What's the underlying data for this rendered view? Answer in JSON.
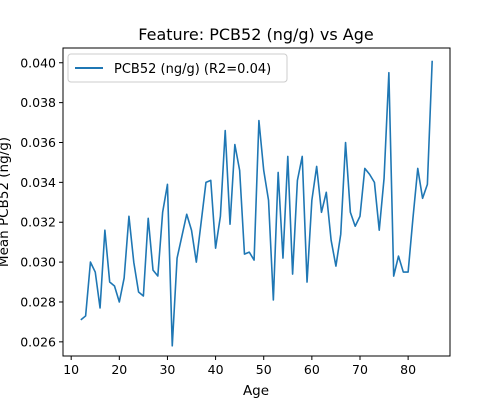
{
  "chart_data": {
    "type": "line",
    "title": "Feature: PCB52 (ng/g) vs Age",
    "xlabel": "Age",
    "ylabel": "Mean PCB52 (ng/g)",
    "xlim": [
      8.3,
      88.7
    ],
    "ylim": [
      0.02529,
      0.04074
    ],
    "xticks": [
      10,
      20,
      30,
      40,
      50,
      60,
      70,
      80
    ],
    "yticks": [
      0.026,
      0.028,
      0.03,
      0.032,
      0.034,
      0.036,
      0.038,
      0.04
    ],
    "ytick_labels": [
      "0.026",
      "0.028",
      "0.030",
      "0.032",
      "0.034",
      "0.036",
      "0.038",
      "0.040"
    ],
    "grid": false,
    "legend_position": "upper-left",
    "series": [
      {
        "name": "PCB52 (ng/g) (R2=0.04)",
        "color": "#1f77b4",
        "x": [
          12,
          13,
          14,
          15,
          16,
          17,
          18,
          19,
          20,
          21,
          22,
          23,
          24,
          25,
          26,
          27,
          28,
          29,
          30,
          31,
          32,
          33,
          34,
          35,
          36,
          37,
          38,
          39,
          40,
          41,
          42,
          43,
          44,
          45,
          46,
          47,
          48,
          49,
          50,
          51,
          52,
          53,
          54,
          55,
          56,
          57,
          58,
          59,
          60,
          61,
          62,
          63,
          64,
          65,
          66,
          67,
          68,
          69,
          70,
          71,
          72,
          73,
          74,
          75,
          76,
          77,
          78,
          79,
          80,
          81,
          82,
          83,
          84,
          85
        ],
        "y": [
          0.0271,
          0.0273,
          0.03,
          0.0295,
          0.0277,
          0.0316,
          0.029,
          0.0288,
          0.028,
          0.0292,
          0.0323,
          0.03,
          0.0285,
          0.0283,
          0.0322,
          0.0296,
          0.0293,
          0.0325,
          0.0339,
          0.0258,
          0.0302,
          0.0313,
          0.0324,
          0.0316,
          0.03,
          0.032,
          0.034,
          0.0341,
          0.0307,
          0.0323,
          0.0366,
          0.0319,
          0.0359,
          0.0346,
          0.0304,
          0.0305,
          0.0301,
          0.0371,
          0.0346,
          0.0331,
          0.0281,
          0.0345,
          0.0302,
          0.0353,
          0.0294,
          0.0341,
          0.0353,
          0.029,
          0.0331,
          0.0348,
          0.0325,
          0.0335,
          0.0311,
          0.0298,
          0.0314,
          0.036,
          0.0325,
          0.0318,
          0.0323,
          0.0347,
          0.0344,
          0.034,
          0.0316,
          0.0342,
          0.0395,
          0.0293,
          0.0303,
          0.0295,
          0.0295,
          0.0322,
          0.0347,
          0.0332,
          0.0339,
          0.0401
        ]
      }
    ]
  }
}
